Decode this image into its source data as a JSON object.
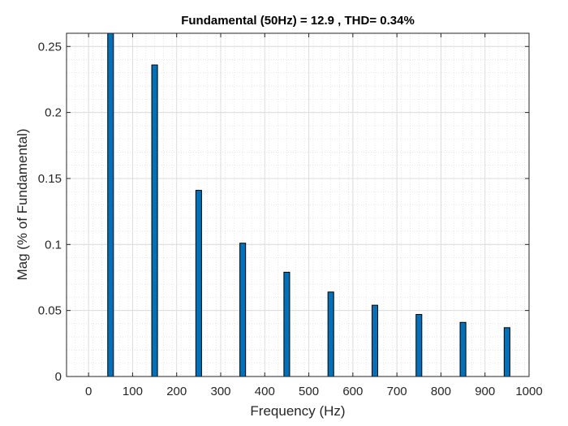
{
  "chart_data": {
    "type": "bar",
    "title": "Fundamental (50Hz) = 12.9 , THD= 0.34%",
    "xlabel": "Frequency (Hz)",
    "ylabel": "Mag (% of Fundamental)",
    "xlim": [
      -50,
      1000
    ],
    "ylim": [
      0,
      0.26
    ],
    "x": [
      50,
      150,
      250,
      350,
      450,
      550,
      650,
      750,
      850,
      950
    ],
    "values": [
      0.26,
      0.236,
      0.141,
      0.101,
      0.079,
      0.064,
      0.054,
      0.047,
      0.041,
      0.037
    ],
    "xticks": [
      "0",
      "100",
      "200",
      "300",
      "400",
      "500",
      "600",
      "700",
      "800",
      "900",
      "1000"
    ],
    "yticks": [
      "0",
      "0.05",
      "0.1",
      "0.15",
      "0.2",
      "0.25"
    ],
    "grid": true,
    "minor_grid": true,
    "bar_color": "#0072BD",
    "bar_edge_color": "#000000"
  }
}
